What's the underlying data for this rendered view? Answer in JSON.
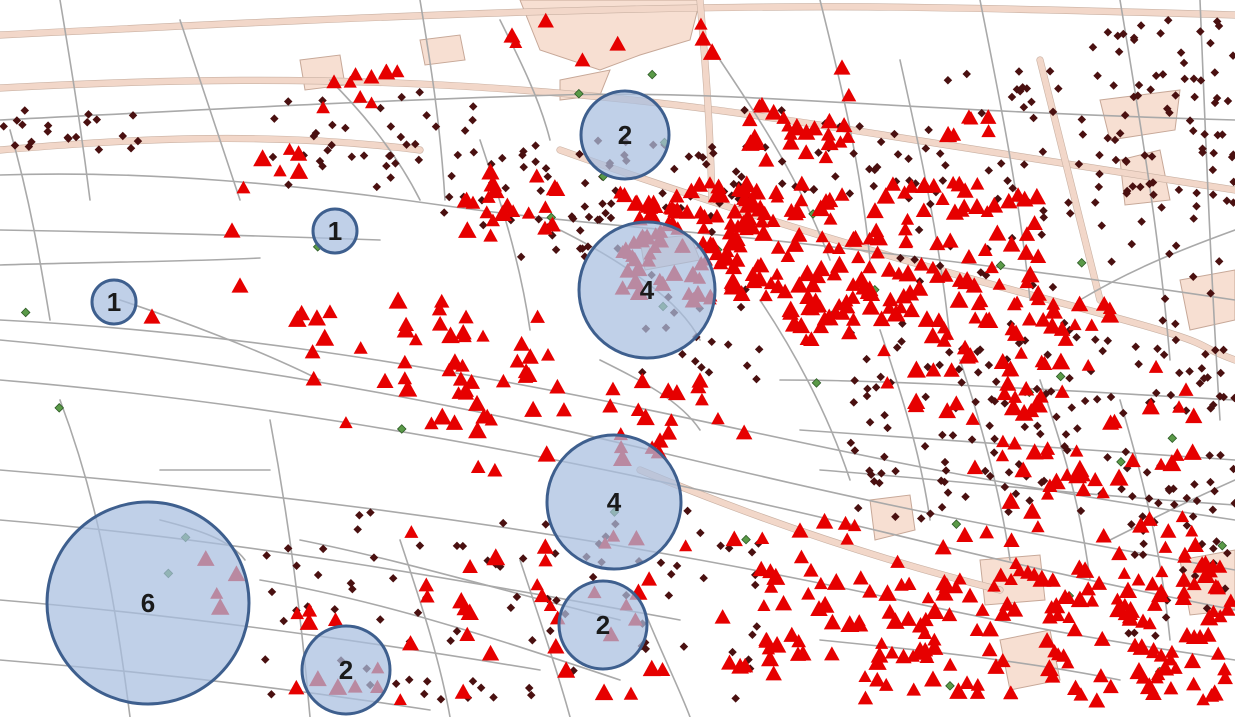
{
  "colors": {
    "background": "#ffffff",
    "road": "#a9a9a9",
    "major_road": "#f2d7c9",
    "incident_triangle": "#e60000",
    "incident_triangle_in_buffer": "#a8323f",
    "stop_marker": "#4a1010",
    "green_marker": "#5a9a48",
    "buffer_fill": "#a7bedf",
    "buffer_stroke": "#3e5f8e"
  },
  "icons": {
    "incident": "red-triangle-icon",
    "stop": "dark-diamond-icon",
    "station": "green-diamond-icon"
  },
  "clusters": [
    {
      "id": "cluster-top-center",
      "label": "2"
    },
    {
      "id": "cluster-left-upper",
      "label": "1"
    },
    {
      "id": "cluster-left-middle",
      "label": "1"
    },
    {
      "id": "cluster-center-upper",
      "label": "4"
    },
    {
      "id": "cluster-center-lower",
      "label": "4"
    },
    {
      "id": "cluster-bottom-left-large",
      "label": "6"
    },
    {
      "id": "cluster-bottom-left-small",
      "label": "2"
    },
    {
      "id": "cluster-bottom-center",
      "label": "2"
    }
  ]
}
